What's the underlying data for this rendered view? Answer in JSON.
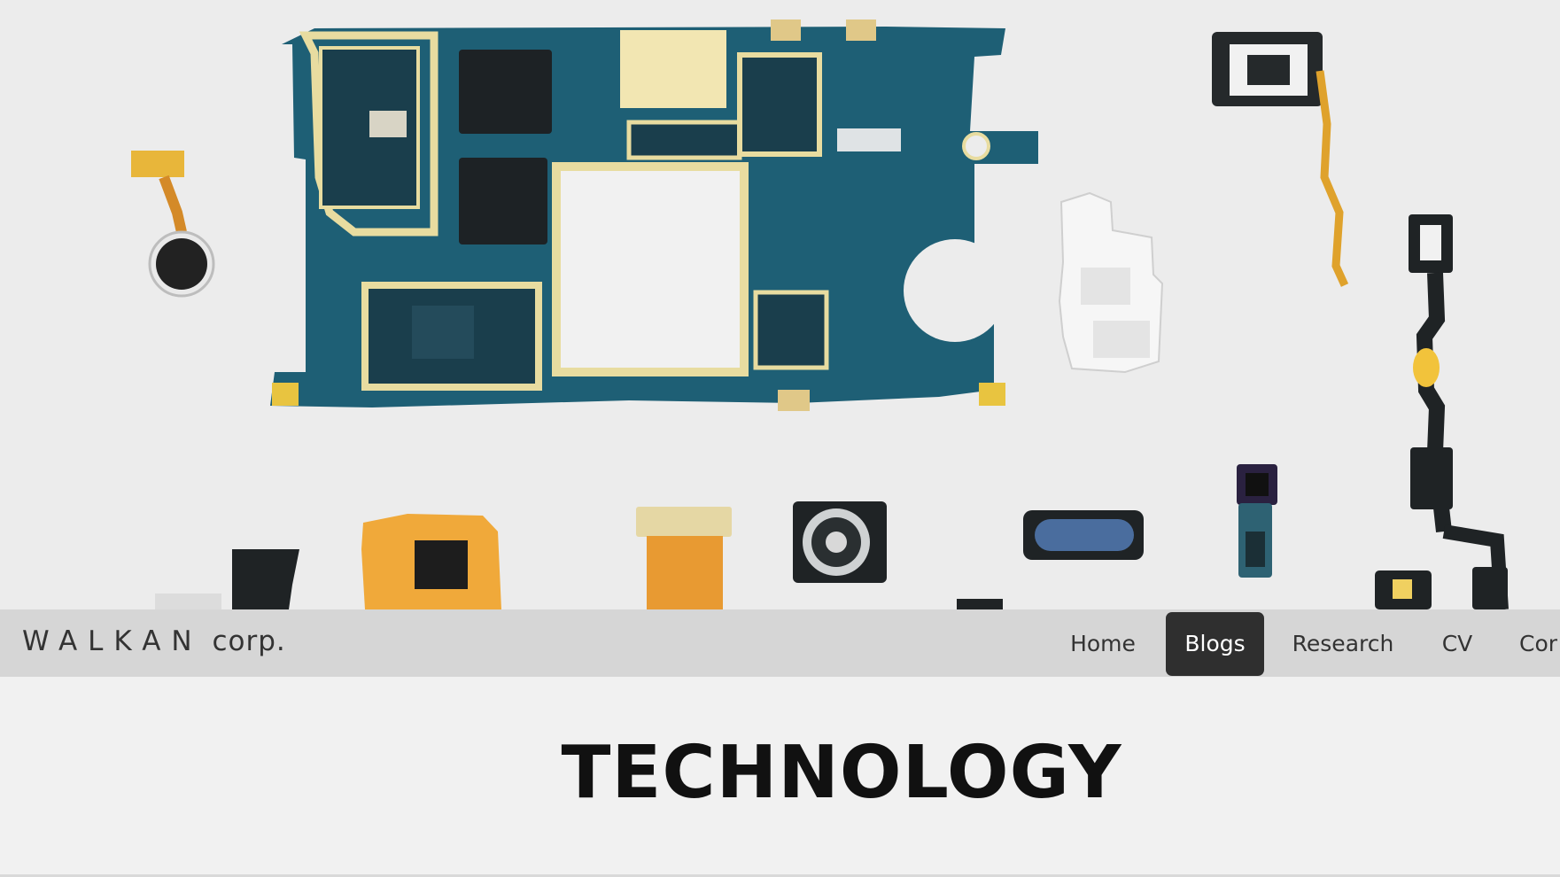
{
  "navbar": {
    "brand_spaced": "WALKAN",
    "brand_suffix": "corp.",
    "items": [
      {
        "label": "Home",
        "active": false
      },
      {
        "label": "Blogs",
        "active": true
      },
      {
        "label": "Research",
        "active": false
      },
      {
        "label": "CV",
        "active": false
      },
      {
        "label": "Cor",
        "active": false
      }
    ]
  },
  "page_title": "TECHNOLOGY",
  "colors": {
    "navbar_bg": "#d6d6d6",
    "active_tab_bg": "#2f2f2f",
    "pcb_teal": "#1e5f75",
    "gold_trace": "#e8dca0",
    "flex_orange": "#e89a32"
  }
}
